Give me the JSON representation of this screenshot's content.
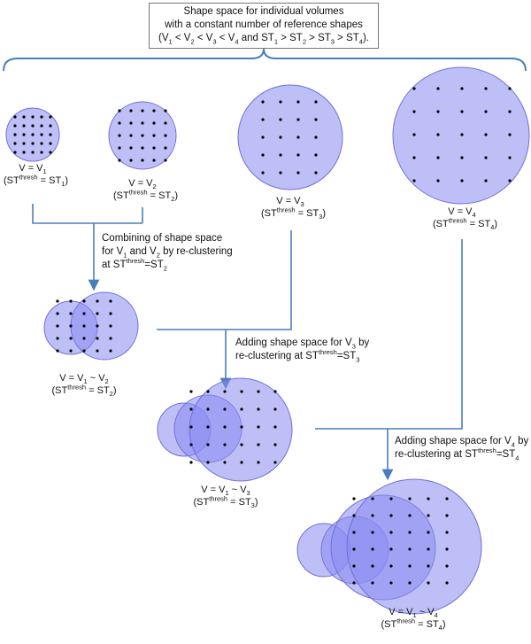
{
  "title": {
    "line1": "Shape space for individual volumes",
    "line2": "with a constant number of reference shapes",
    "line3_prefix": "(V",
    "line3_a": "1",
    "line3_b": " < V",
    "line3_c": "2",
    "line3_d": " < V",
    "line3_e": "3",
    "line3_f": " < V",
    "line3_g": "4",
    "line3_h": " and ST",
    "line3_i": "1",
    "line3_j": " > ST",
    "line3_k": "2",
    "line3_l": " > ST",
    "line3_m": "3",
    "line3_n": " > ST",
    "line3_o": "4",
    "line3_p": ")."
  },
  "labels": {
    "v": "V = V",
    "vtilde": "V = V",
    "tilde": " ~ V",
    "st_open": "(ST",
    "thresh": "thresh",
    "st_eq": " = ST",
    "close": ")",
    "sub1": "1",
    "sub2": "2",
    "sub3": "3",
    "sub4": "4"
  },
  "notes": {
    "combine_l1": "Combining of shape space",
    "combine_l2a": "for V",
    "combine_l2b": "1",
    "combine_l2c": " and V",
    "combine_l2d": "2",
    "combine_l2e": " by re-clustering",
    "combine_l3a": "at ST",
    "combine_l3b": "thresh",
    "combine_l3c": "=ST",
    "combine_l3d": "2",
    "add3_l1a": "Adding shape space for V",
    "add3_l1b": "3",
    "add3_l1c": " by",
    "add3_l2a": "re-clustering at ST",
    "add3_l2b": "thresh",
    "add3_l2c": "=ST",
    "add3_l2d": "3",
    "add4_l1a": "Adding shape space for V",
    "add4_l1b": "4",
    "add4_l1c": " by",
    "add4_l2a": "re-clustering at ST",
    "add4_l2b": "thresh",
    "add4_l2c": "=ST",
    "add4_l2d": "4"
  },
  "colors": {
    "circle_fill": "#8b8bf2",
    "circle_stroke": "#6f6fd8",
    "connector": "#4a7ebb",
    "dot": "#000000"
  }
}
